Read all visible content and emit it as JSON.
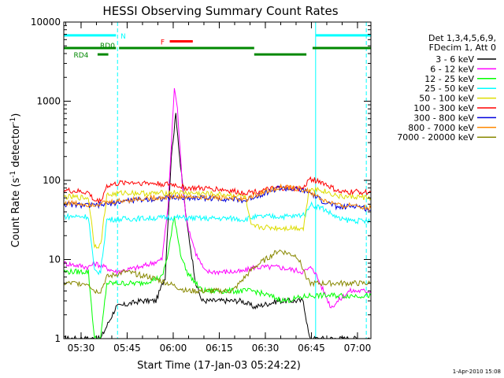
{
  "chart_data": {
    "type": "line",
    "title": "HESSI Observing Summary Count Rates",
    "xlabel": "Start Time (17-Jan-03 05:24:22)",
    "ylabel_main": "Count Rate (s",
    "ylabel_sup1": "-1",
    "ylabel_mid": " detector",
    "ylabel_sup2": "-1",
    "ylabel_end": ")",
    "footer_date": "1-Apr-2010 15:08",
    "y_scale": "log",
    "ylim": [
      1,
      10000
    ],
    "xlim_minutes": [
      0,
      100
    ],
    "x_ticks": [
      {
        "label": "05:30",
        "m": 5.63
      },
      {
        "label": "05:45",
        "m": 20.63
      },
      {
        "label": "06:00",
        "m": 35.63
      },
      {
        "label": "06:15",
        "m": 50.63
      },
      {
        "label": "06:30",
        "m": 65.63
      },
      {
        "label": "06:45",
        "m": 80.63
      },
      {
        "label": "07:00",
        "m": 95.63
      }
    ],
    "y_ticks": [
      {
        "label": "1",
        "v": 1
      },
      {
        "label": "10",
        "v": 10
      },
      {
        "label": "100",
        "v": 100
      },
      {
        "label": "1000",
        "v": 1000
      },
      {
        "label": "10000",
        "v": 10000
      }
    ],
    "legend_header": [
      "Det 1,3,4,5,6,9,",
      "FDecim 1, Att 0"
    ],
    "series": [
      {
        "name": "3 - 6 keV",
        "color": "#000000",
        "points": [
          [
            0,
            1
          ],
          [
            8,
            1
          ],
          [
            12,
            1
          ],
          [
            17,
            2.5
          ],
          [
            25,
            3
          ],
          [
            30,
            3
          ],
          [
            33,
            6
          ],
          [
            35,
            200
          ],
          [
            36.5,
            700
          ],
          [
            38,
            150
          ],
          [
            40,
            30
          ],
          [
            43,
            5
          ],
          [
            45,
            3
          ],
          [
            50,
            3
          ],
          [
            58,
            3
          ],
          [
            62,
            2.5
          ],
          [
            70,
            3
          ],
          [
            78,
            3
          ],
          [
            80,
            1
          ],
          [
            100,
            1
          ]
        ]
      },
      {
        "name": "6 - 12 keV",
        "color": "#ff00ff",
        "points": [
          [
            0,
            9
          ],
          [
            8,
            8
          ],
          [
            10,
            9
          ],
          [
            17,
            7
          ],
          [
            25,
            8
          ],
          [
            32,
            10
          ],
          [
            34,
            50
          ],
          [
            36,
            1500
          ],
          [
            37,
            800
          ],
          [
            38.5,
            100
          ],
          [
            40,
            30
          ],
          [
            43,
            12
          ],
          [
            46,
            7
          ],
          [
            55,
            7
          ],
          [
            58,
            7
          ],
          [
            62,
            8
          ],
          [
            70,
            8
          ],
          [
            78,
            7
          ],
          [
            81,
            8
          ],
          [
            87,
            2.5
          ],
          [
            93,
            4
          ],
          [
            100,
            4
          ]
        ]
      },
      {
        "name": "12 - 25 keV",
        "color": "#00ff00",
        "points": [
          [
            0,
            7
          ],
          [
            8,
            7
          ],
          [
            10,
            1
          ],
          [
            12,
            1
          ],
          [
            14,
            5
          ],
          [
            25,
            5
          ],
          [
            32,
            6
          ],
          [
            34,
            12
          ],
          [
            36,
            35
          ],
          [
            38,
            12
          ],
          [
            40,
            7
          ],
          [
            45,
            4
          ],
          [
            58,
            4
          ],
          [
            62,
            4
          ],
          [
            72,
            3
          ],
          [
            80,
            3.5
          ],
          [
            90,
            3.5
          ],
          [
            100,
            3.5
          ]
        ]
      },
      {
        "name": "25 - 50 keV",
        "color": "#00ffff",
        "points": [
          [
            0,
            35
          ],
          [
            8,
            35
          ],
          [
            10,
            7
          ],
          [
            12,
            7
          ],
          [
            14,
            32
          ],
          [
            25,
            33
          ],
          [
            35,
            34
          ],
          [
            45,
            33
          ],
          [
            55,
            33
          ],
          [
            59,
            32
          ],
          [
            61,
            34
          ],
          [
            67,
            35
          ],
          [
            75,
            35
          ],
          [
            79,
            38
          ],
          [
            80,
            50
          ],
          [
            84,
            45
          ],
          [
            90,
            32
          ],
          [
            100,
            30
          ]
        ]
      },
      {
        "name": "50 - 100 keV",
        "color": "#dddd00",
        "points": [
          [
            0,
            62
          ],
          [
            8,
            60
          ],
          [
            10,
            15
          ],
          [
            12,
            15
          ],
          [
            14,
            65
          ],
          [
            20,
            70
          ],
          [
            28,
            68
          ],
          [
            36,
            70
          ],
          [
            45,
            68
          ],
          [
            55,
            65
          ],
          [
            59,
            63
          ],
          [
            61,
            26
          ],
          [
            70,
            25
          ],
          [
            78,
            25
          ],
          [
            80,
            80
          ],
          [
            84,
            75
          ],
          [
            90,
            62
          ],
          [
            95,
            62
          ],
          [
            100,
            60
          ]
        ]
      },
      {
        "name": "100 - 300 keV",
        "color": "#ff0000",
        "points": [
          [
            0,
            75
          ],
          [
            8,
            70
          ],
          [
            10,
            55
          ],
          [
            12,
            55
          ],
          [
            14,
            85
          ],
          [
            20,
            95
          ],
          [
            28,
            92
          ],
          [
            36,
            88
          ],
          [
            40,
            80
          ],
          [
            50,
            78
          ],
          [
            58,
            70
          ],
          [
            62,
            72
          ],
          [
            70,
            80
          ],
          [
            78,
            78
          ],
          [
            80,
            105
          ],
          [
            84,
            95
          ],
          [
            90,
            70
          ],
          [
            95,
            72
          ],
          [
            100,
            70
          ]
        ]
      },
      {
        "name": "300 - 800 keV",
        "color": "#0000dd",
        "points": [
          [
            0,
            50
          ],
          [
            8,
            48
          ],
          [
            10,
            48
          ],
          [
            14,
            50
          ],
          [
            20,
            55
          ],
          [
            28,
            58
          ],
          [
            36,
            60
          ],
          [
            45,
            60
          ],
          [
            55,
            58
          ],
          [
            59,
            55
          ],
          [
            62,
            62
          ],
          [
            70,
            80
          ],
          [
            77,
            75
          ],
          [
            80,
            70
          ],
          [
            84,
            55
          ],
          [
            90,
            45
          ],
          [
            95,
            48
          ],
          [
            100,
            42
          ]
        ]
      },
      {
        "name": "800 - 7000 keV",
        "color": "#ff8800",
        "points": [
          [
            0,
            52
          ],
          [
            8,
            50
          ],
          [
            10,
            50
          ],
          [
            14,
            52
          ],
          [
            20,
            56
          ],
          [
            28,
            60
          ],
          [
            36,
            62
          ],
          [
            45,
            61
          ],
          [
            55,
            60
          ],
          [
            59,
            56
          ],
          [
            62,
            65
          ],
          [
            70,
            82
          ],
          [
            77,
            78
          ],
          [
            80,
            72
          ],
          [
            84,
            57
          ],
          [
            90,
            47
          ],
          [
            95,
            49
          ],
          [
            100,
            44
          ]
        ]
      },
      {
        "name": "7000 - 20000 keV",
        "color": "#888800",
        "points": [
          [
            0,
            5
          ],
          [
            8,
            5
          ],
          [
            10,
            4
          ],
          [
            12,
            4
          ],
          [
            14,
            6
          ],
          [
            20,
            7
          ],
          [
            28,
            6
          ],
          [
            34,
            5
          ],
          [
            40,
            4
          ],
          [
            48,
            4
          ],
          [
            55,
            4
          ],
          [
            59,
            6
          ],
          [
            62,
            8
          ],
          [
            70,
            13
          ],
          [
            76,
            11
          ],
          [
            80,
            5
          ],
          [
            90,
            5
          ],
          [
            100,
            5
          ]
        ]
      }
    ],
    "flag_bars": [
      {
        "label": "N",
        "color": "#00ffff",
        "y": 6800,
        "segments": [
          [
            0,
            17
          ],
          [
            82,
            100
          ]
        ]
      },
      {
        "label": "F",
        "color": "#ff0000",
        "y": 5700,
        "segments": [
          [
            34.5,
            42
          ]
        ]
      },
      {
        "label": "RD0",
        "color": "#008800",
        "y": 4700,
        "segments": [
          [
            0,
            17
          ],
          [
            18,
            62
          ],
          [
            81,
            100
          ]
        ]
      },
      {
        "label": "RD4",
        "color": "#008800",
        "y": 3900,
        "segments": [
          [
            11,
            14.5
          ],
          [
            62,
            79
          ]
        ]
      }
    ],
    "saa_lines_minutes": [
      0,
      17.5,
      82,
      98.5
    ]
  }
}
